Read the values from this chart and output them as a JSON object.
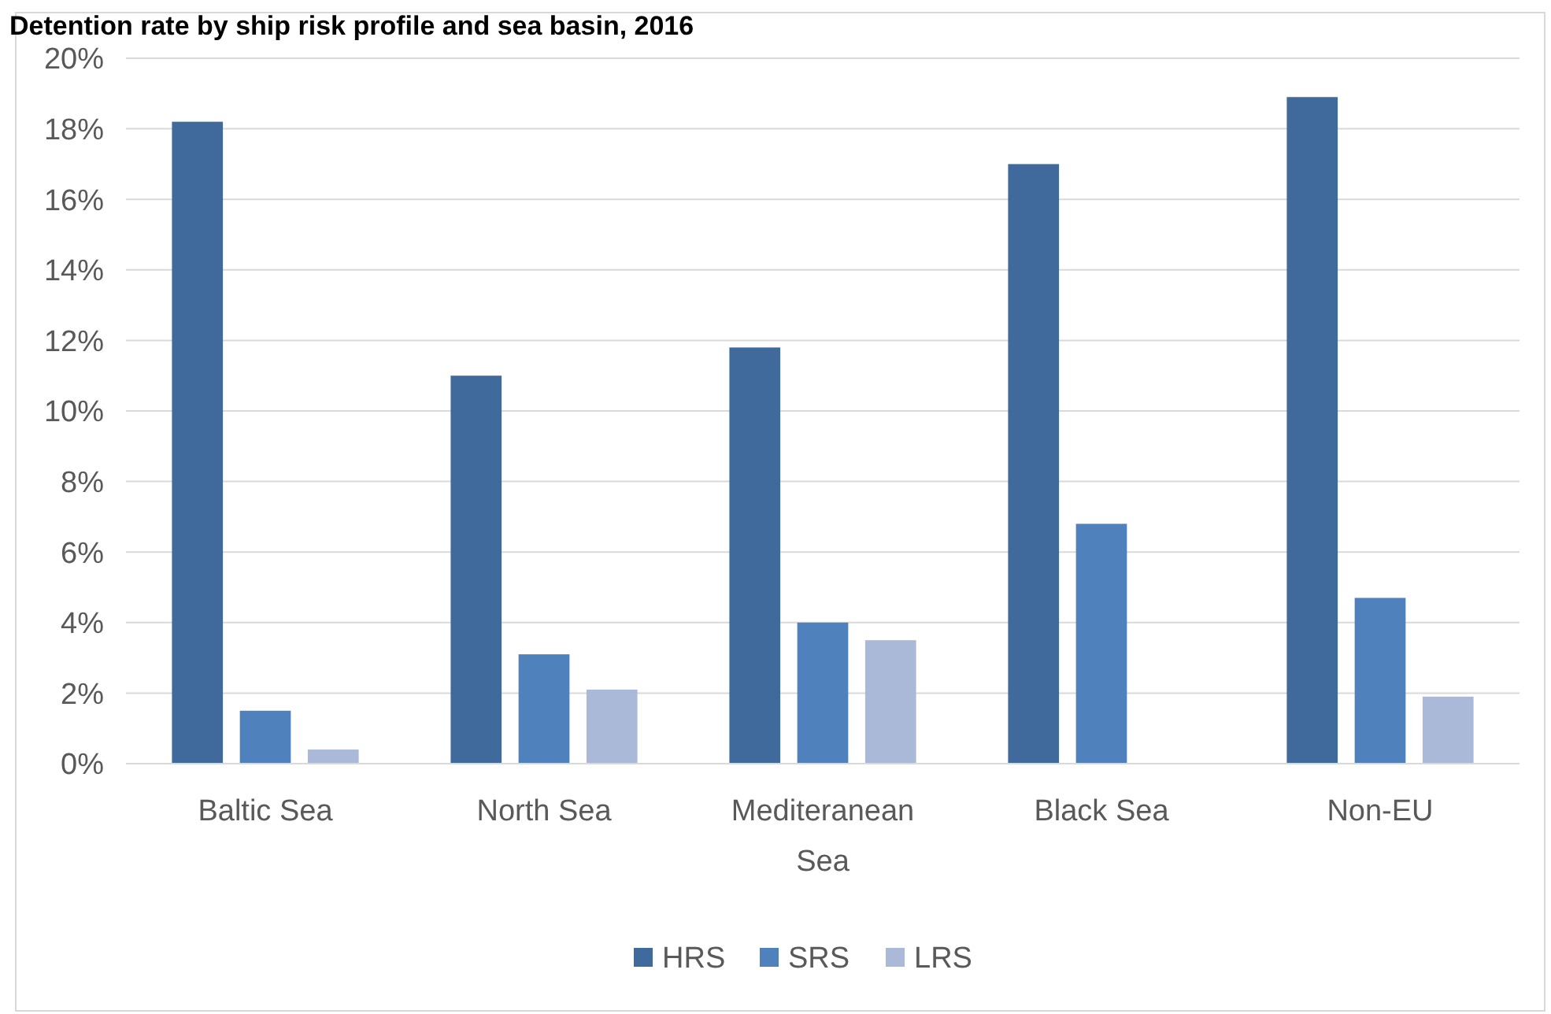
{
  "chart_data": {
    "type": "bar",
    "title": "Detention rate by ship risk profile and sea basin, 2016",
    "categories": [
      "Baltic Sea",
      "North Sea",
      "Mediteranean Sea",
      "Black Sea",
      "Non-EU"
    ],
    "series": [
      {
        "name": "HRS",
        "color": "#406a9c",
        "values": [
          18.2,
          11.0,
          11.8,
          17.0,
          18.9
        ]
      },
      {
        "name": "SRS",
        "color": "#4f81bd",
        "values": [
          1.5,
          3.1,
          4.0,
          6.8,
          4.7
        ]
      },
      {
        "name": "LRS",
        "color": "#aab9d8",
        "values": [
          0.4,
          2.1,
          3.5,
          0,
          1.9
        ]
      }
    ],
    "ylim": [
      0,
      20
    ],
    "yticks": [
      {
        "value": 0,
        "label": "0%"
      },
      {
        "value": 2,
        "label": "2%"
      },
      {
        "value": 4,
        "label": "4%"
      },
      {
        "value": 6,
        "label": "6%"
      },
      {
        "value": 8,
        "label": "8%"
      },
      {
        "value": 10,
        "label": "10%"
      },
      {
        "value": 12,
        "label": "12%"
      },
      {
        "value": 14,
        "label": "14%"
      },
      {
        "value": 16,
        "label": "16%"
      },
      {
        "value": 18,
        "label": "18%"
      },
      {
        "value": 20,
        "label": "20%"
      }
    ],
    "grid": "y",
    "legend": "bottom"
  }
}
